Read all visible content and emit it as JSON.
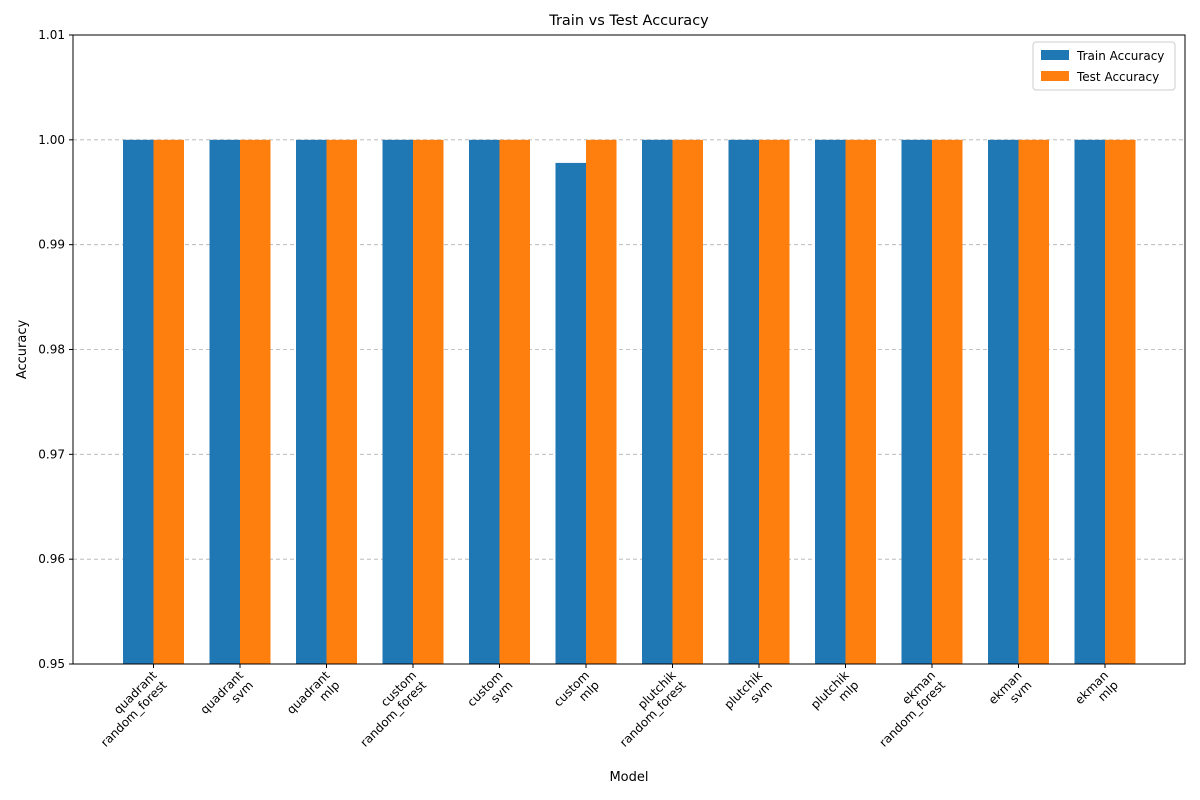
{
  "chart_data": {
    "type": "bar",
    "title": "Train vs Test Accuracy",
    "xlabel": "Model",
    "ylabel": "Accuracy",
    "ylim": [
      0.95,
      1.01
    ],
    "yticks": [
      "0.95",
      "0.96",
      "0.97",
      "0.98",
      "0.99",
      "1.00",
      "1.01"
    ],
    "grid": "y-dashed",
    "legend_position": "top-right",
    "categories": [
      [
        "quadrant",
        "random_forest"
      ],
      [
        "quadrant",
        "svm"
      ],
      [
        "quadrant",
        "mlp"
      ],
      [
        "custom",
        "random_forest"
      ],
      [
        "custom",
        "svm"
      ],
      [
        "custom",
        "mlp"
      ],
      [
        "plutchik",
        "random_forest"
      ],
      [
        "plutchik",
        "svm"
      ],
      [
        "plutchik",
        "mlp"
      ],
      [
        "ekman",
        "random_forest"
      ],
      [
        "ekman",
        "svm"
      ],
      [
        "ekman",
        "mlp"
      ]
    ],
    "series": [
      {
        "name": "Train Accuracy",
        "color": "#1f77b4",
        "values": [
          1.0,
          1.0,
          1.0,
          1.0,
          1.0,
          0.9978,
          1.0,
          1.0,
          1.0,
          1.0,
          1.0,
          1.0
        ]
      },
      {
        "name": "Test Accuracy",
        "color": "#ff7f0e",
        "values": [
          1.0,
          1.0,
          1.0,
          1.0,
          1.0,
          1.0,
          1.0,
          1.0,
          1.0,
          1.0,
          1.0,
          1.0
        ]
      }
    ]
  }
}
